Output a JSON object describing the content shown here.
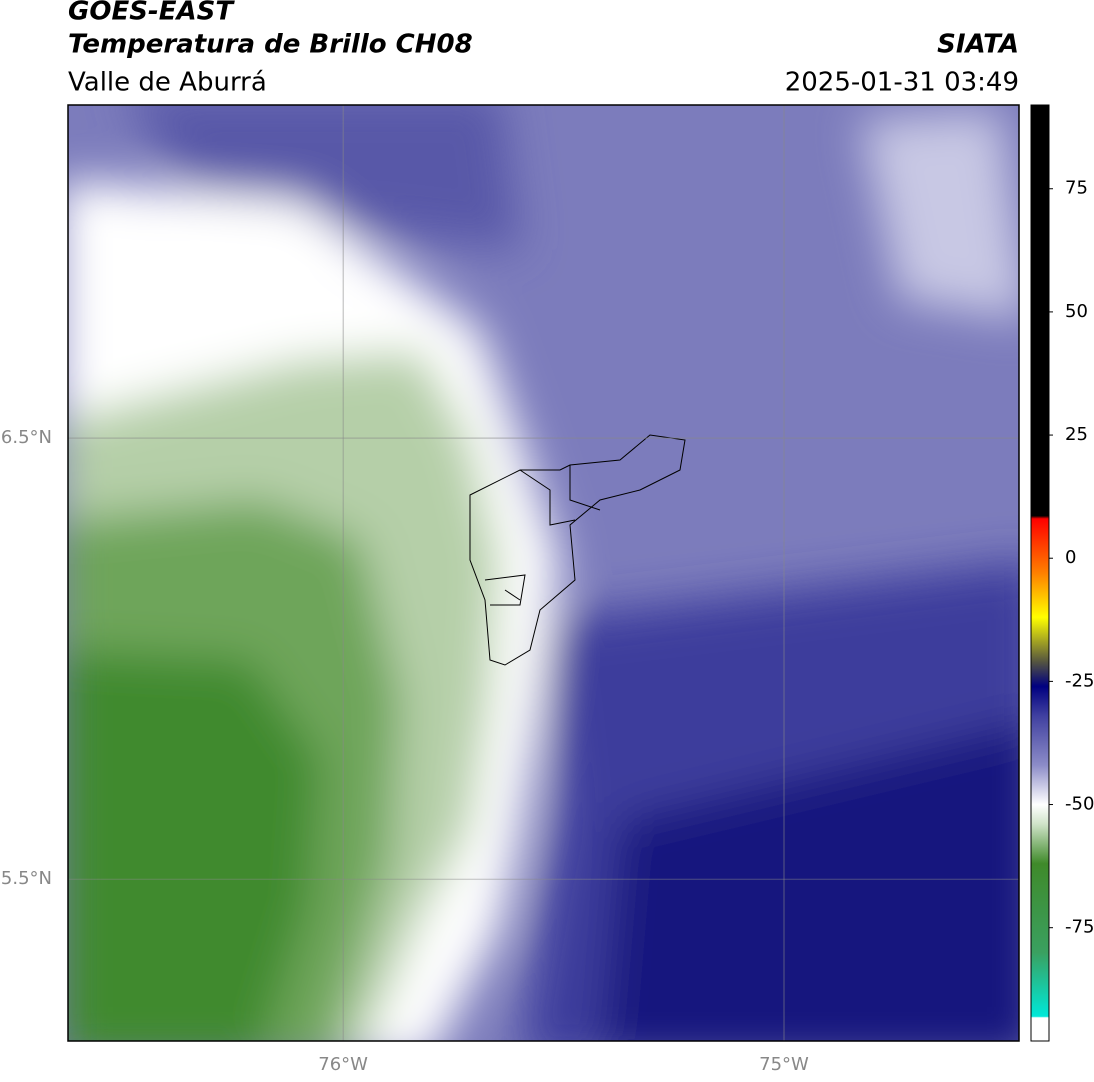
{
  "header": {
    "title": "GOES-EAST",
    "subtitle": "Temperatura de Brillo CH08",
    "source": "SIATA",
    "region": "Valle de Aburrá",
    "timestamp": "2025-01-31 03:49"
  },
  "map": {
    "xlim": [
      -76.624,
      -74.467
    ],
    "ylim": [
      5.133,
      7.255
    ],
    "xticks": [
      {
        "value": -76,
        "label": "76°W"
      },
      {
        "value": -75,
        "label": "75°W"
      }
    ],
    "yticks": [
      {
        "value": 6.5,
        "label": "6.5°N"
      },
      {
        "value": 5.5,
        "label": "5.5°N"
      }
    ],
    "grid": true
  },
  "colorbar": {
    "lim": [
      -98,
      92
    ],
    "ticks": [
      75,
      50,
      25,
      0,
      -25,
      -50,
      -75
    ],
    "colors": [
      "#ffffff",
      "#ffffff",
      "#00e8d8",
      "#3aa060",
      "#3f8a2a",
      "#cfe3c8",
      "#ffffff",
      "#8c8cc8",
      "#4040a0",
      "#000080",
      "#555540",
      "#ffff00",
      "#ff8000",
      "#ff0000",
      "#000000",
      "#000000"
    ],
    "stops": [
      -98,
      -93.3,
      -93,
      -80,
      -62,
      -54,
      -50,
      -42,
      -32,
      -26,
      -21,
      -12,
      -3,
      8,
      8.6,
      92
    ]
  }
}
